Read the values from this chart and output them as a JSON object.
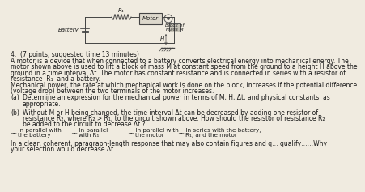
{
  "background_color": "#f0ebe0",
  "text_color": "#1a1a1a",
  "font_size": 5.5,
  "circuit": {
    "battery_label": "Battery",
    "R1_label": "R₁",
    "motor_label": "Motor",
    "block_label": "Block of\nMass M",
    "H_label": "H"
  },
  "q_number": "4.  (7 points, suggested time 13 minutes)",
  "para1_line1": "A motor is a device that when connected to a battery converts electrical energy into mechanical energy. The",
  "para1_line2": "motor shown above is used to lift a block of mass M at constant speed from the ground to a height H above the",
  "para1_line3": "ground in a time interval Δt. The motor has constant resistance and is connected in series with a resistor of",
  "para1_line4": "resistance  R₁  and a battery.",
  "para2_line1": "Mechanical power, the rate at which mechanical work is done on the block, increases if the potential difference",
  "para2_line2": "(voltage drop) between the two terminals of the motor increases.",
  "parta_label": "(a)",
  "parta_line1": "Determine an expression for the mechanical power in terms of M, H, Δt, and physical constants, as",
  "parta_line2": "appropriate.",
  "partb_label": "(b)",
  "partb_line1": "Without M or H being changed, the time interval Δt can be decreased by adding one resistor of",
  "partb_line2": "resistance R₂, where R₂ > R₁, to the circuit shown above. How should the resistor of resistance R₂",
  "partb_line3": "be added to the circuit to decrease Δt ?",
  "opt1_line1": "__ In parallel with",
  "opt1_line2": "    the battery",
  "opt2_line1": "__ In parallel",
  "opt2_line2": "    with R₁",
  "opt3_line1": "__ In parallel with",
  "opt3_line2": "    the motor",
  "opt4_line1": "__ In series with the battery,",
  "opt4_line2": "    R₁, and the motor",
  "close_line1": "In a clear, coherent, paragraph-length response that may also contain figures and q… qualify……Why",
  "close_line2": "your selection would decrease Δt."
}
